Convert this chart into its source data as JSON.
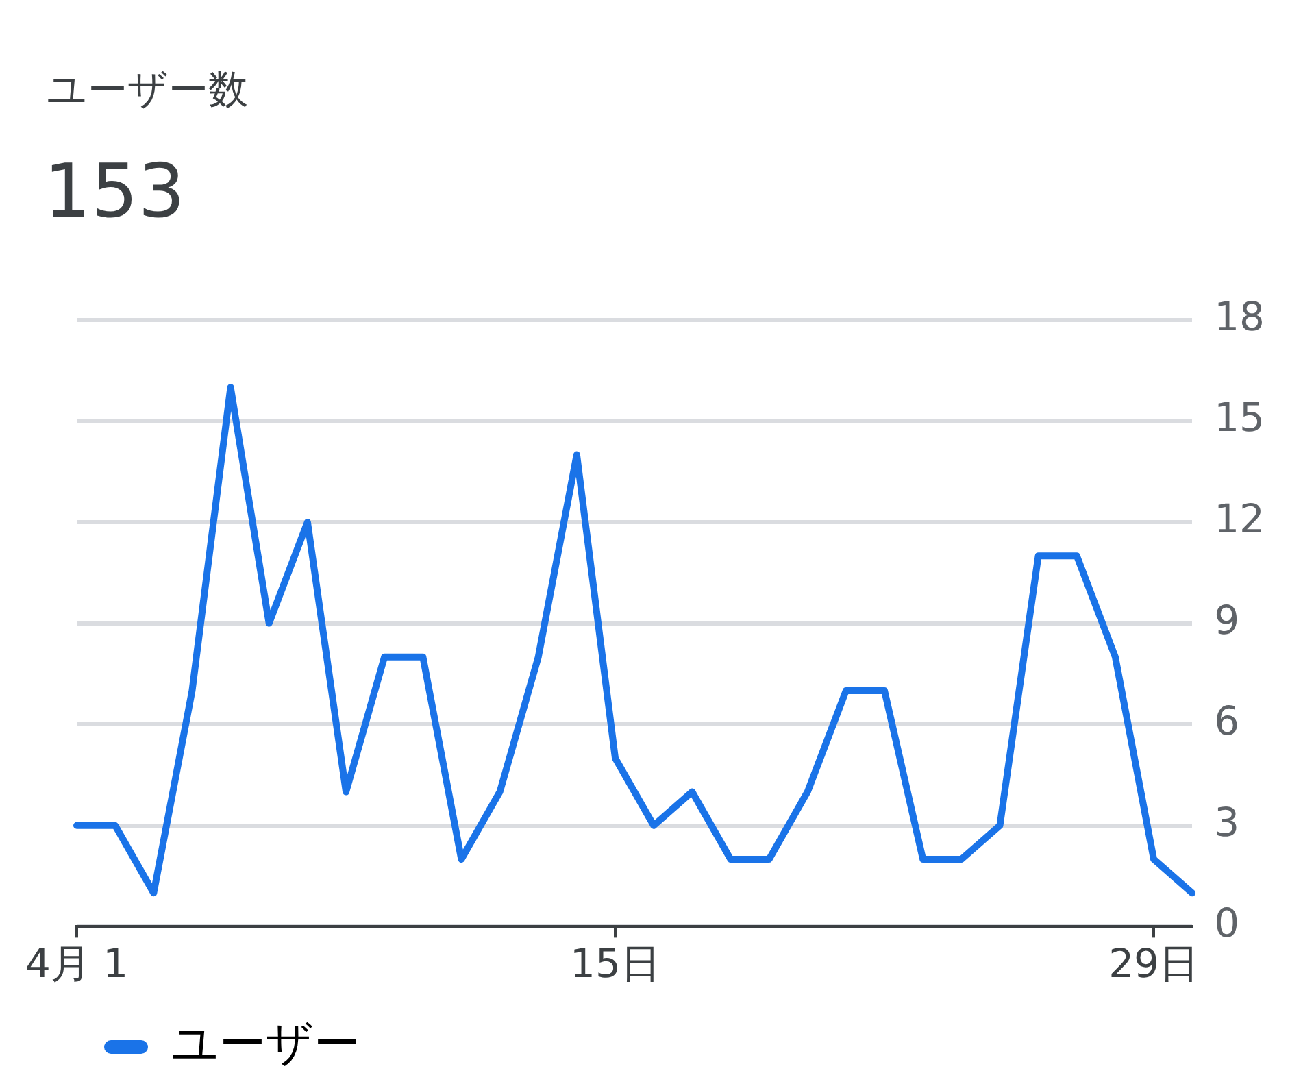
{
  "chart_data": {
    "type": "line",
    "title": "ユーザー数",
    "subtitle": "153",
    "categories": [
      "4月 1",
      null,
      null,
      null,
      null,
      null,
      null,
      null,
      null,
      null,
      null,
      null,
      null,
      null,
      "15日",
      null,
      null,
      null,
      null,
      null,
      null,
      null,
      null,
      null,
      null,
      null,
      null,
      null,
      "29日",
      null
    ],
    "series": [
      {
        "name": "ユーザー",
        "color": "#1a73e8",
        "values": [
          3,
          3,
          1,
          7,
          16,
          9,
          12,
          4,
          8,
          8,
          2,
          4,
          8,
          14,
          5,
          3,
          4,
          2,
          2,
          4,
          7,
          7,
          2,
          2,
          3,
          11,
          11,
          8,
          2,
          1
        ]
      }
    ],
    "ylim": [
      0,
      18
    ],
    "yticks": [
      0,
      3,
      6,
      9,
      12,
      15,
      18
    ],
    "grid": "y",
    "legend": "bottom left",
    "marker": "none",
    "line_style": "solid"
  }
}
